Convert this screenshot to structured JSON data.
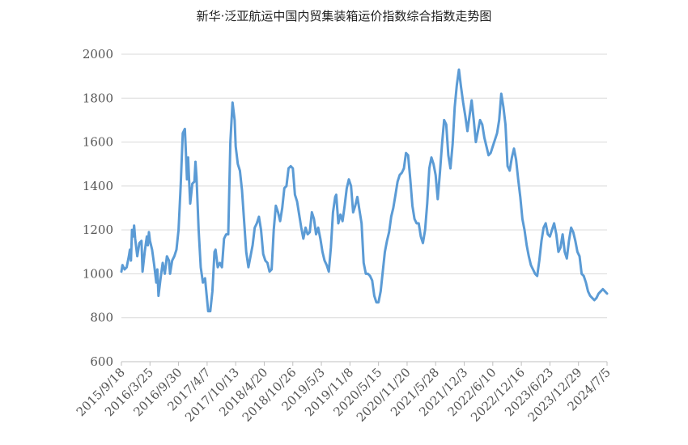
{
  "chart_data": {
    "type": "line",
    "title": "新华·泛亚航运中国内贸集装箱运价指数综合指数走势图",
    "xlabel": "",
    "ylabel": "",
    "ylim": [
      600,
      2000
    ],
    "yticks": [
      600,
      800,
      1000,
      1200,
      1400,
      1600,
      1800,
      2000
    ],
    "xlim": [
      "2015-09-18",
      "2024-07-05"
    ],
    "xtick_labels": [
      "2015/9/18",
      "2016/3/25",
      "2016/9/30",
      "2017/4/7",
      "2017/10/13",
      "2018/4/20",
      "2018/10/26",
      "2019/5/3",
      "2019/11/8",
      "2020/5/15",
      "2020/11/20",
      "2021/5/28",
      "2021/12/3",
      "2022/6/10",
      "2022/12/16",
      "2023/6/23",
      "2023/12/29",
      "2024/7/5"
    ],
    "xtick_dates": [
      "2015-09-18",
      "2016-03-25",
      "2016-09-30",
      "2017-04-07",
      "2017-10-13",
      "2018-04-20",
      "2018-10-26",
      "2019-05-03",
      "2019-11-08",
      "2020-05-15",
      "2020-11-20",
      "2021-05-28",
      "2021-12-03",
      "2022-06-10",
      "2022-12-16",
      "2023-06-23",
      "2023-12-29",
      "2024-07-05"
    ],
    "grid": "horizontal",
    "line_color": "#5b9bd5",
    "series": [
      {
        "name": "",
        "points": [
          [
            "2015-09-18",
            1010
          ],
          [
            "2015-09-25",
            1040
          ],
          [
            "2015-10-09",
            1020
          ],
          [
            "2015-10-23",
            1030
          ],
          [
            "2015-11-06",
            1080
          ],
          [
            "2015-11-13",
            1110
          ],
          [
            "2015-11-20",
            1060
          ],
          [
            "2015-11-27",
            1200
          ],
          [
            "2015-12-04",
            1170
          ],
          [
            "2015-12-11",
            1220
          ],
          [
            "2015-12-18",
            1160
          ],
          [
            "2016-01-01",
            1080
          ],
          [
            "2016-01-15",
            1140
          ],
          [
            "2016-01-29",
            1150
          ],
          [
            "2016-02-05",
            1010
          ],
          [
            "2016-02-19",
            1100
          ],
          [
            "2016-03-04",
            1170
          ],
          [
            "2016-03-11",
            1130
          ],
          [
            "2016-03-18",
            1190
          ],
          [
            "2016-03-25",
            1150
          ],
          [
            "2016-04-08",
            1110
          ],
          [
            "2016-04-22",
            1040
          ],
          [
            "2016-05-06",
            960
          ],
          [
            "2016-05-13",
            1020
          ],
          [
            "2016-05-20",
            900
          ],
          [
            "2016-06-03",
            980
          ],
          [
            "2016-06-17",
            1050
          ],
          [
            "2016-07-01",
            1000
          ],
          [
            "2016-07-15",
            1080
          ],
          [
            "2016-07-29",
            1060
          ],
          [
            "2016-08-05",
            1000
          ],
          [
            "2016-08-19",
            1060
          ],
          [
            "2016-09-02",
            1080
          ],
          [
            "2016-09-16",
            1110
          ],
          [
            "2016-09-30",
            1200
          ],
          [
            "2016-10-14",
            1400
          ],
          [
            "2016-10-28",
            1640
          ],
          [
            "2016-11-11",
            1660
          ],
          [
            "2016-11-18",
            1550
          ],
          [
            "2016-11-25",
            1430
          ],
          [
            "2016-12-02",
            1530
          ],
          [
            "2016-12-09",
            1420
          ],
          [
            "2016-12-16",
            1320
          ],
          [
            "2016-12-30",
            1410
          ],
          [
            "2017-01-13",
            1420
          ],
          [
            "2017-01-20",
            1510
          ],
          [
            "2017-01-27",
            1440
          ],
          [
            "2017-02-10",
            1200
          ],
          [
            "2017-02-24",
            1030
          ],
          [
            "2017-03-10",
            960
          ],
          [
            "2017-03-24",
            980
          ],
          [
            "2017-04-07",
            880
          ],
          [
            "2017-04-14",
            830
          ],
          [
            "2017-04-28",
            830
          ],
          [
            "2017-05-12",
            920
          ],
          [
            "2017-05-26",
            1100
          ],
          [
            "2017-06-02",
            1110
          ],
          [
            "2017-06-16",
            1030
          ],
          [
            "2017-06-30",
            1050
          ],
          [
            "2017-07-14",
            1030
          ],
          [
            "2017-07-28",
            1160
          ],
          [
            "2017-08-11",
            1180
          ],
          [
            "2017-08-25",
            1180
          ],
          [
            "2017-09-08",
            1600
          ],
          [
            "2017-09-22",
            1780
          ],
          [
            "2017-10-06",
            1700
          ],
          [
            "2017-10-13",
            1580
          ],
          [
            "2017-10-27",
            1500
          ],
          [
            "2017-11-10",
            1470
          ],
          [
            "2017-11-24",
            1380
          ],
          [
            "2017-12-08",
            1240
          ],
          [
            "2017-12-22",
            1100
          ],
          [
            "2018-01-05",
            1030
          ],
          [
            "2018-01-19",
            1080
          ],
          [
            "2018-02-02",
            1130
          ],
          [
            "2018-02-16",
            1210
          ],
          [
            "2018-03-02",
            1230
          ],
          [
            "2018-03-16",
            1260
          ],
          [
            "2018-03-30",
            1200
          ],
          [
            "2018-04-13",
            1090
          ],
          [
            "2018-04-27",
            1060
          ],
          [
            "2018-05-11",
            1050
          ],
          [
            "2018-05-25",
            1010
          ],
          [
            "2018-06-08",
            1020
          ],
          [
            "2018-06-22",
            1200
          ],
          [
            "2018-07-06",
            1310
          ],
          [
            "2018-07-20",
            1280
          ],
          [
            "2018-08-03",
            1240
          ],
          [
            "2018-08-17",
            1300
          ],
          [
            "2018-08-31",
            1390
          ],
          [
            "2018-09-14",
            1400
          ],
          [
            "2018-09-28",
            1480
          ],
          [
            "2018-10-12",
            1490
          ],
          [
            "2018-10-26",
            1480
          ],
          [
            "2018-11-09",
            1360
          ],
          [
            "2018-11-23",
            1330
          ],
          [
            "2018-12-07",
            1270
          ],
          [
            "2018-12-21",
            1210
          ],
          [
            "2019-01-04",
            1160
          ],
          [
            "2019-01-18",
            1210
          ],
          [
            "2019-02-01",
            1180
          ],
          [
            "2019-02-15",
            1190
          ],
          [
            "2019-03-01",
            1280
          ],
          [
            "2019-03-15",
            1250
          ],
          [
            "2019-03-29",
            1180
          ],
          [
            "2019-04-12",
            1210
          ],
          [
            "2019-04-26",
            1160
          ],
          [
            "2019-05-10",
            1100
          ],
          [
            "2019-05-24",
            1060
          ],
          [
            "2019-06-07",
            1040
          ],
          [
            "2019-06-21",
            1010
          ],
          [
            "2019-07-05",
            1120
          ],
          [
            "2019-07-19",
            1280
          ],
          [
            "2019-08-02",
            1350
          ],
          [
            "2019-08-09",
            1360
          ],
          [
            "2019-08-23",
            1230
          ],
          [
            "2019-09-06",
            1270
          ],
          [
            "2019-09-20",
            1240
          ],
          [
            "2019-10-04",
            1310
          ],
          [
            "2019-10-18",
            1390
          ],
          [
            "2019-11-01",
            1430
          ],
          [
            "2019-11-15",
            1400
          ],
          [
            "2019-11-29",
            1280
          ],
          [
            "2019-12-13",
            1310
          ],
          [
            "2019-12-27",
            1350
          ],
          [
            "2020-01-10",
            1290
          ],
          [
            "2020-01-24",
            1230
          ],
          [
            "2020-02-07",
            1050
          ],
          [
            "2020-02-21",
            1000
          ],
          [
            "2020-03-06",
            1000
          ],
          [
            "2020-03-20",
            990
          ],
          [
            "2020-04-03",
            970
          ],
          [
            "2020-04-17",
            900
          ],
          [
            "2020-05-01",
            870
          ],
          [
            "2020-05-15",
            870
          ],
          [
            "2020-05-29",
            920
          ],
          [
            "2020-06-12",
            1010
          ],
          [
            "2020-06-26",
            1100
          ],
          [
            "2020-07-10",
            1150
          ],
          [
            "2020-07-24",
            1190
          ],
          [
            "2020-08-07",
            1260
          ],
          [
            "2020-08-21",
            1300
          ],
          [
            "2020-09-04",
            1360
          ],
          [
            "2020-09-18",
            1420
          ],
          [
            "2020-10-02",
            1450
          ],
          [
            "2020-10-16",
            1460
          ],
          [
            "2020-10-30",
            1480
          ],
          [
            "2020-11-13",
            1550
          ],
          [
            "2020-11-27",
            1540
          ],
          [
            "2020-12-11",
            1430
          ],
          [
            "2020-12-25",
            1310
          ],
          [
            "2021-01-08",
            1250
          ],
          [
            "2021-01-22",
            1230
          ],
          [
            "2021-02-05",
            1230
          ],
          [
            "2021-02-19",
            1170
          ],
          [
            "2021-03-05",
            1140
          ],
          [
            "2021-03-19",
            1200
          ],
          [
            "2021-04-02",
            1320
          ],
          [
            "2021-04-16",
            1480
          ],
          [
            "2021-04-30",
            1530
          ],
          [
            "2021-05-14",
            1500
          ],
          [
            "2021-05-28",
            1450
          ],
          [
            "2021-06-11",
            1340
          ],
          [
            "2021-06-25",
            1460
          ],
          [
            "2021-07-09",
            1590
          ],
          [
            "2021-07-23",
            1700
          ],
          [
            "2021-08-06",
            1680
          ],
          [
            "2021-08-20",
            1540
          ],
          [
            "2021-09-03",
            1480
          ],
          [
            "2021-09-17",
            1590
          ],
          [
            "2021-10-01",
            1760
          ],
          [
            "2021-10-15",
            1860
          ],
          [
            "2021-10-29",
            1930
          ],
          [
            "2021-11-12",
            1850
          ],
          [
            "2021-11-26",
            1780
          ],
          [
            "2021-12-10",
            1720
          ],
          [
            "2021-12-24",
            1650
          ],
          [
            "2022-01-07",
            1720
          ],
          [
            "2022-01-21",
            1790
          ],
          [
            "2022-02-04",
            1700
          ],
          [
            "2022-02-18",
            1600
          ],
          [
            "2022-03-04",
            1650
          ],
          [
            "2022-03-18",
            1700
          ],
          [
            "2022-04-01",
            1680
          ],
          [
            "2022-04-15",
            1620
          ],
          [
            "2022-04-29",
            1580
          ],
          [
            "2022-05-13",
            1540
          ],
          [
            "2022-05-27",
            1550
          ],
          [
            "2022-06-10",
            1580
          ],
          [
            "2022-06-24",
            1610
          ],
          [
            "2022-07-08",
            1640
          ],
          [
            "2022-07-22",
            1700
          ],
          [
            "2022-08-05",
            1820
          ],
          [
            "2022-08-19",
            1760
          ],
          [
            "2022-09-02",
            1680
          ],
          [
            "2022-09-16",
            1490
          ],
          [
            "2022-09-30",
            1470
          ],
          [
            "2022-10-14",
            1530
          ],
          [
            "2022-10-28",
            1570
          ],
          [
            "2022-11-11",
            1520
          ],
          [
            "2022-11-25",
            1430
          ],
          [
            "2022-12-09",
            1350
          ],
          [
            "2022-12-23",
            1250
          ],
          [
            "2023-01-06",
            1200
          ],
          [
            "2023-01-20",
            1130
          ],
          [
            "2023-02-03",
            1080
          ],
          [
            "2023-02-17",
            1040
          ],
          [
            "2023-03-03",
            1020
          ],
          [
            "2023-03-17",
            1000
          ],
          [
            "2023-03-31",
            990
          ],
          [
            "2023-04-14",
            1060
          ],
          [
            "2023-04-28",
            1150
          ],
          [
            "2023-05-12",
            1210
          ],
          [
            "2023-05-26",
            1230
          ],
          [
            "2023-06-09",
            1180
          ],
          [
            "2023-06-23",
            1170
          ],
          [
            "2023-07-07",
            1200
          ],
          [
            "2023-07-21",
            1230
          ],
          [
            "2023-08-04",
            1180
          ],
          [
            "2023-08-18",
            1100
          ],
          [
            "2023-09-01",
            1120
          ],
          [
            "2023-09-15",
            1180
          ],
          [
            "2023-09-29",
            1100
          ],
          [
            "2023-10-13",
            1070
          ],
          [
            "2023-10-27",
            1150
          ],
          [
            "2023-11-10",
            1210
          ],
          [
            "2023-11-24",
            1190
          ],
          [
            "2023-12-08",
            1150
          ],
          [
            "2023-12-22",
            1100
          ],
          [
            "2024-01-05",
            1080
          ],
          [
            "2024-01-19",
            1000
          ],
          [
            "2024-02-02",
            990
          ],
          [
            "2024-02-16",
            960
          ],
          [
            "2024-03-01",
            920
          ],
          [
            "2024-03-15",
            900
          ],
          [
            "2024-03-29",
            890
          ],
          [
            "2024-04-12",
            880
          ],
          [
            "2024-04-26",
            890
          ],
          [
            "2024-05-10",
            910
          ],
          [
            "2024-05-24",
            920
          ],
          [
            "2024-06-07",
            930
          ],
          [
            "2024-06-21",
            920
          ],
          [
            "2024-07-05",
            910
          ]
        ]
      }
    ]
  }
}
